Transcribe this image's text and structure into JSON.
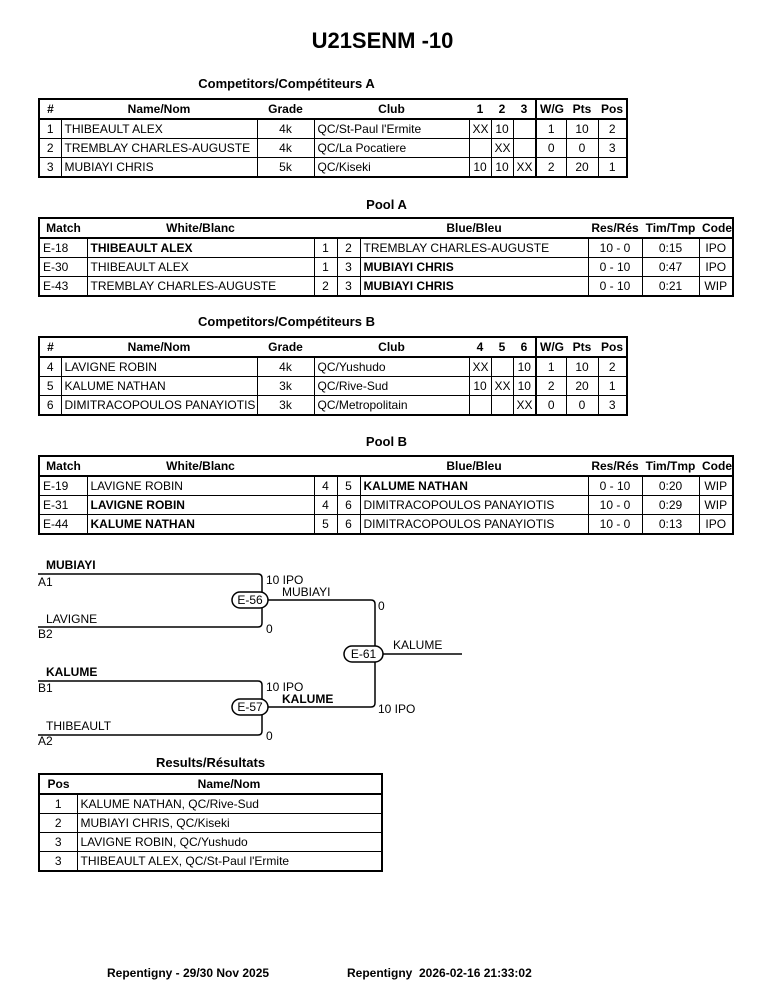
{
  "title": "U21SENM -10",
  "competitors_headers": {
    "num": "#",
    "name": "Name/Nom",
    "grade": "Grade",
    "club": "Club",
    "wg": "W/G",
    "pts": "Pts",
    "pos": "Pos"
  },
  "pool_headers": {
    "match": "Match",
    "white": "White/Blanc",
    "blue": "Blue/Bleu",
    "res": "Res/Rés",
    "time": "Tim/Tmp",
    "code": "Code"
  },
  "competitors_a": {
    "title": "Competitors/Compétiteurs A",
    "cols": [
      "1",
      "2",
      "3"
    ],
    "rows": [
      {
        "num": "1",
        "name": "THIBEAULT ALEX",
        "grade": "4k",
        "club": "QC/St-Paul l'Ermite",
        "s": [
          "XX",
          "10",
          ""
        ],
        "wg": "1",
        "pts": "10",
        "pos": "2"
      },
      {
        "num": "2",
        "name": "TREMBLAY CHARLES-AUGUSTE",
        "grade": "4k",
        "club": "QC/La Pocatiere",
        "s": [
          "",
          "XX",
          ""
        ],
        "wg": "0",
        "pts": "0",
        "pos": "3"
      },
      {
        "num": "3",
        "name": "MUBIAYI CHRIS",
        "grade": "5k",
        "club": "QC/Kiseki",
        "s": [
          "10",
          "10",
          "XX"
        ],
        "wg": "2",
        "pts": "20",
        "pos": "1"
      }
    ]
  },
  "pool_a": {
    "title": "Pool A",
    "rows": [
      {
        "match": "E-18",
        "white": "THIBEAULT ALEX",
        "wnum": "1",
        "bnum": "2",
        "blue": "TREMBLAY CHARLES-AUGUSTE",
        "res": "10 - 0",
        "time": "0:15",
        "code": "IPO",
        "winner": "white"
      },
      {
        "match": "E-30",
        "white": "THIBEAULT ALEX",
        "wnum": "1",
        "bnum": "3",
        "blue": "MUBIAYI CHRIS",
        "res": "0 - 10",
        "time": "0:47",
        "code": "IPO",
        "winner": "blue"
      },
      {
        "match": "E-43",
        "white": "TREMBLAY CHARLES-AUGUSTE",
        "wnum": "2",
        "bnum": "3",
        "blue": "MUBIAYI CHRIS",
        "res": "0 - 10",
        "time": "0:21",
        "code": "WIP",
        "winner": "blue"
      }
    ]
  },
  "competitors_b": {
    "title": "Competitors/Compétiteurs B",
    "cols": [
      "4",
      "5",
      "6"
    ],
    "rows": [
      {
        "num": "4",
        "name": "LAVIGNE ROBIN",
        "grade": "4k",
        "club": "QC/Yushudo",
        "s": [
          "XX",
          "",
          "10"
        ],
        "wg": "1",
        "pts": "10",
        "pos": "2"
      },
      {
        "num": "5",
        "name": "KALUME NATHAN",
        "grade": "3k",
        "club": "QC/Rive-Sud",
        "s": [
          "10",
          "XX",
          "10"
        ],
        "wg": "2",
        "pts": "20",
        "pos": "1"
      },
      {
        "num": "6",
        "name": "DIMITRACOPOULOS PANAYIOTIS",
        "grade": "3k",
        "club": "QC/Metropolitain",
        "s": [
          "",
          "",
          "XX"
        ],
        "wg": "0",
        "pts": "0",
        "pos": "3"
      }
    ]
  },
  "pool_b": {
    "title": "Pool B",
    "rows": [
      {
        "match": "E-19",
        "white": "LAVIGNE ROBIN",
        "wnum": "4",
        "bnum": "5",
        "blue": "KALUME NATHAN",
        "res": "0 - 10",
        "time": "0:20",
        "code": "WIP",
        "winner": "blue"
      },
      {
        "match": "E-31",
        "white": "LAVIGNE ROBIN",
        "wnum": "4",
        "bnum": "6",
        "blue": "DIMITRACOPOULOS PANAYIOTIS",
        "res": "10 - 0",
        "time": "0:29",
        "code": "WIP",
        "winner": "white"
      },
      {
        "match": "E-44",
        "white": "KALUME NATHAN",
        "wnum": "5",
        "bnum": "6",
        "blue": "DIMITRACOPOULOS PANAYIOTIS",
        "res": "10 - 0",
        "time": "0:13",
        "code": "IPO",
        "winner": "white"
      }
    ]
  },
  "bracket": {
    "semi1": {
      "id": "E-56",
      "top": "MUBIAYI",
      "top_seed": "A1",
      "top_score": "10 IPO",
      "bottom": "LAVIGNE",
      "bottom_seed": "B2",
      "bottom_score": "0",
      "winner": "MUBIAYI"
    },
    "semi2": {
      "id": "E-57",
      "top": "KALUME",
      "top_seed": "B1",
      "top_score": "10 IPO",
      "bottom": "THIBEAULT",
      "bottom_seed": "A2",
      "bottom_score": "0",
      "winner": "KALUME"
    },
    "final": {
      "id": "E-61",
      "top_score": "0",
      "bottom_score": "10 IPO",
      "winner": "KALUME"
    }
  },
  "results": {
    "title": "Results/Résultats",
    "headers": {
      "pos": "Pos",
      "name": "Name/Nom"
    },
    "rows": [
      {
        "pos": "1",
        "name": "KALUME NATHAN, QC/Rive-Sud"
      },
      {
        "pos": "2",
        "name": "MUBIAYI CHRIS, QC/Kiseki"
      },
      {
        "pos": "3",
        "name": "LAVIGNE ROBIN, QC/Yushudo"
      },
      {
        "pos": "3",
        "name": "THIBEAULT ALEX, QC/St-Paul l'Ermite"
      }
    ]
  },
  "footer": {
    "event": "Repentigny - 29/30 Nov 2025",
    "location": "Repentigny",
    "printed": "2026-02-16 21:33:02"
  }
}
